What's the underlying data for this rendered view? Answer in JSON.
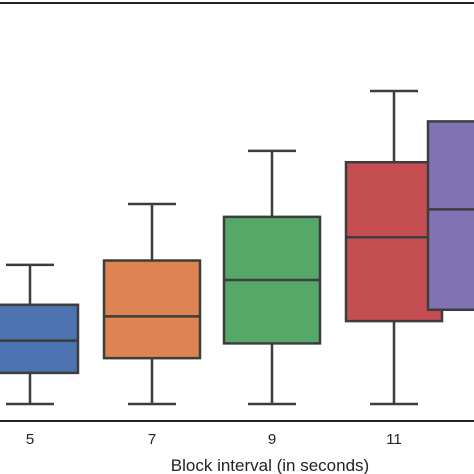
{
  "chart_data": {
    "type": "box",
    "title": "",
    "xlabel": "Block interval (in seconds)",
    "ylabel": "",
    "categories": [
      "5",
      "7",
      "9",
      "11",
      ""
    ],
    "ylim": [
      0,
      100
    ],
    "grid": false,
    "legend": "none",
    "boxes": [
      {
        "category": "5",
        "whisker_low": 0.0,
        "q1": 9.9,
        "median": 20.2,
        "q3": 31.6,
        "whisker_high": 44.3,
        "color": "#4c72b0"
      },
      {
        "category": "7",
        "whisker_low": 0.0,
        "q1": 14.6,
        "median": 27.9,
        "q3": 45.7,
        "whisker_high": 63.7,
        "color": "#dd8452"
      },
      {
        "category": "9",
        "whisker_low": 0.0,
        "q1": 19.3,
        "median": 39.5,
        "q3": 59.6,
        "whisker_high": 80.6,
        "color": "#55a868"
      },
      {
        "category": "11",
        "whisker_low": 0.0,
        "q1": 26.4,
        "median": 53.1,
        "q3": 77.0,
        "whisker_high": 99.7,
        "color": "#c44e52"
      },
      {
        "category": "",
        "whisker_low": null,
        "q1": 30.0,
        "median": 62.0,
        "q3": 90.0,
        "whisker_high": null,
        "color": "#8172b3"
      }
    ]
  }
}
